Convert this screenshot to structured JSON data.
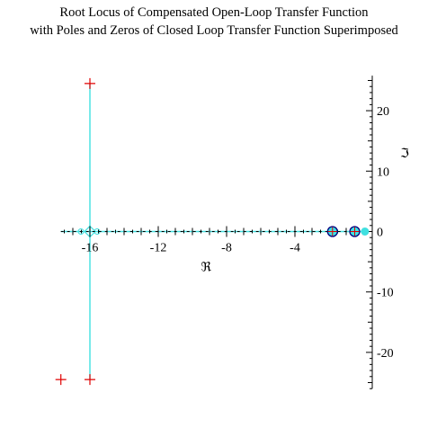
{
  "chart_data": {
    "type": "scatter",
    "title": "Root Locus of Compensated Open-Loop Transfer Function",
    "subtitle": "with Poles and Zeros of Closed Loop Transfer Function Superimposed",
    "xlabel": "ℜ",
    "ylabel": "ℑ",
    "xlim": [
      -18,
      0.3
    ],
    "ylim": [
      -26,
      26
    ],
    "x_ticks": [
      -16,
      -12,
      -8,
      -4
    ],
    "x_tick_labels": [
      "-16",
      "-12",
      "-8",
      "-4"
    ],
    "y_ticks": [
      20,
      10,
      0,
      -10,
      -20
    ],
    "y_tick_labels": [
      "20",
      "10",
      "0",
      "-10",
      "-20"
    ],
    "colors": {
      "locus": "#40e0e0",
      "marker": "#e00000",
      "circle": "#000080",
      "axis": "#000000"
    },
    "series": [
      {
        "values": {
          "segments": [
            {
              "x": [
                -16.0,
                -16.0
              ],
              "y": [
                24.5,
                -24.5
              ]
            },
            {
              "x": [
                -17.7,
                0.1
              ],
              "y": [
                0,
                0
              ]
            }
          ],
          "zero_markers": {
            "x": [
              -16.0
            ],
            "y": [
              0
            ]
          }
        }
      },
      {
        "values": {
          "x": [
            -16.0,
            -16.0,
            -17.7
          ],
          "y": [
            24.5,
            -24.5,
            -24.5
          ]
        }
      },
      {
        "values": {
          "x": [
            -1.8,
            -0.5
          ],
          "y": [
            0,
            0
          ]
        }
      }
    ]
  }
}
